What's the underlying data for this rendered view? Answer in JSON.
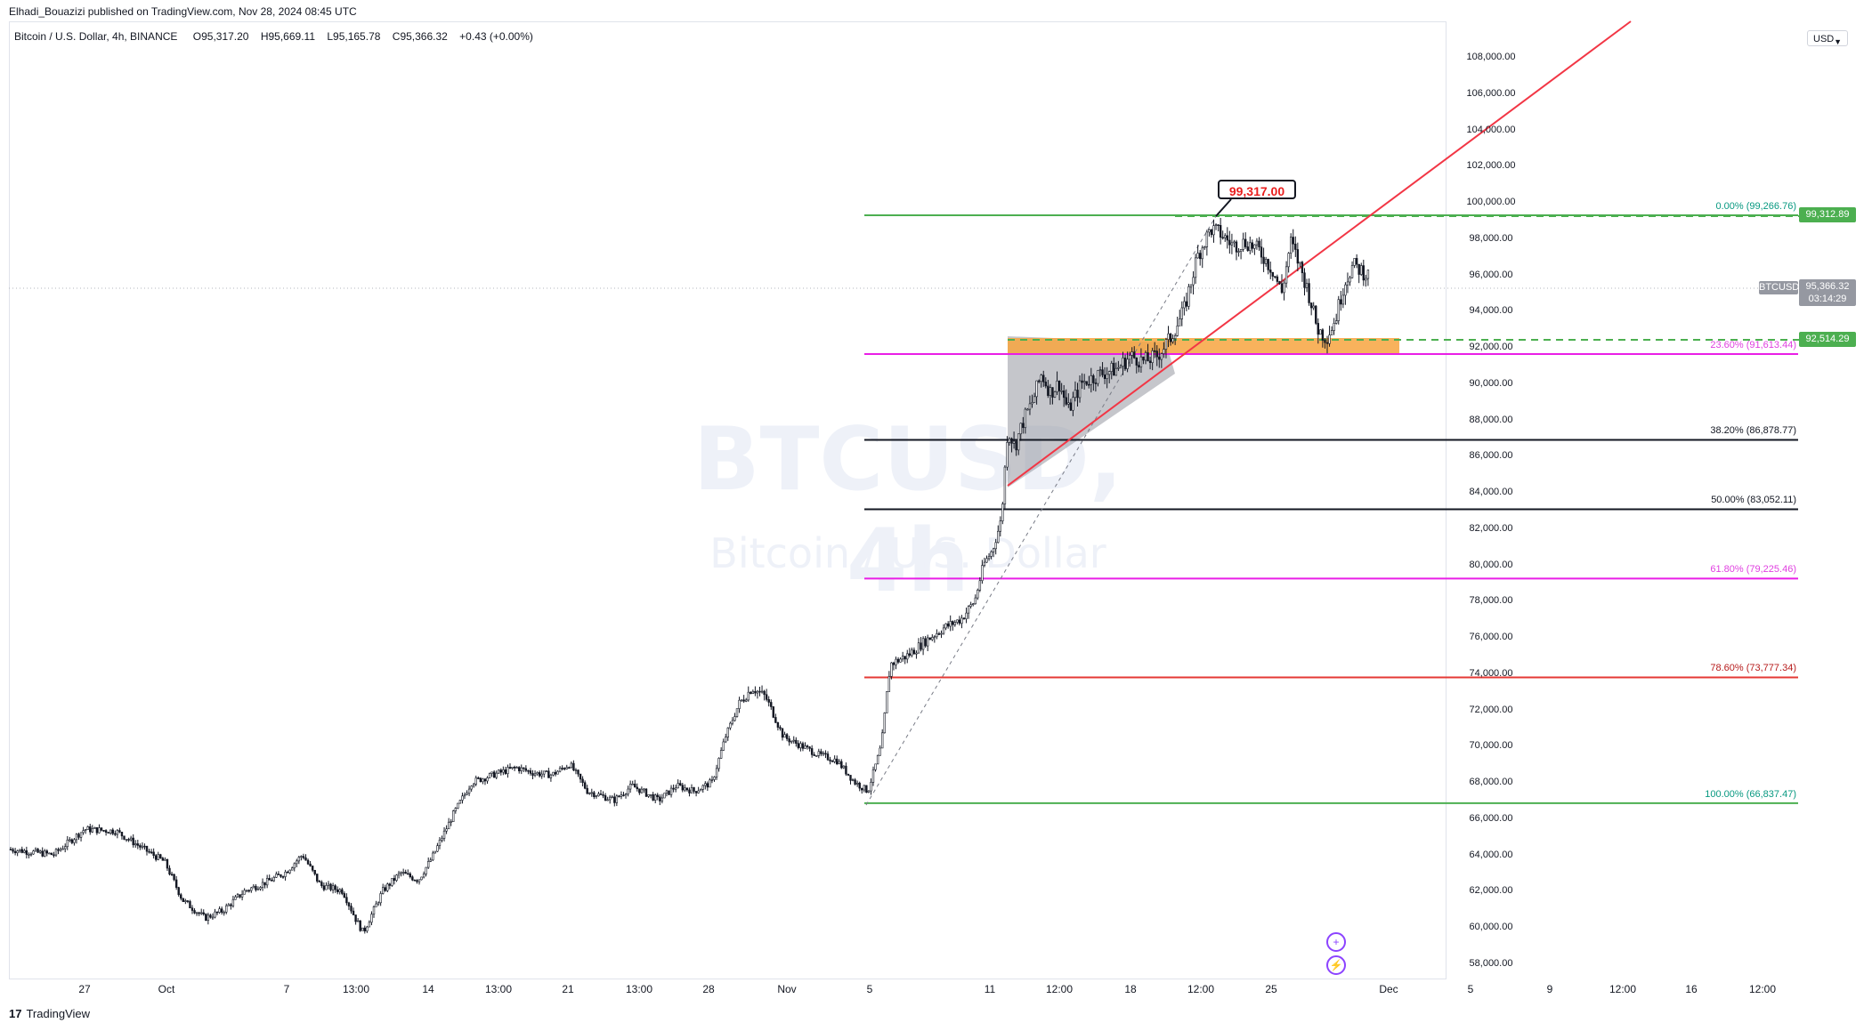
{
  "header": {
    "publisher_line": "Elhadi_Bouazizi published on TradingView.com, Nov 28, 2024 08:45 UTC"
  },
  "legend": {
    "instrument": "Bitcoin / U.S. Dollar, 4h, BINANCE",
    "open_label": "O",
    "open": "95,317.20",
    "high_label": "H",
    "high": "95,669.11",
    "low_label": "L",
    "low": "95,165.78",
    "close_label": "C",
    "close": "95,366.32",
    "change": "+0.43 (+0.00%)"
  },
  "watermark": {
    "symbol": "BTCUSD, 4h",
    "name": "Bitcoin / U.S. Dollar"
  },
  "price_axis": {
    "currency": "USD",
    "ticks": [
      "108,000.00",
      "106,000.00",
      "104,000.00",
      "102,000.00",
      "100,000.00",
      "98,000.00",
      "96,000.00",
      "94,000.00",
      "92,000.00",
      "90,000.00",
      "88,000.00",
      "86,000.00",
      "84,000.00",
      "82,000.00",
      "80,000.00",
      "78,000.00",
      "76,000.00",
      "74,000.00",
      "72,000.00",
      "70,000.00",
      "68,000.00",
      "66,000.00",
      "64,000.00",
      "62,000.00",
      "60,000.00",
      "58,000.00"
    ],
    "tag_high": "99,312.89",
    "tag_symbol": "BTCUSD",
    "tag_price": "95,366.32",
    "tag_countdown": "03:14:29",
    "tag_zone": "92,514.29"
  },
  "fib_levels": [
    {
      "label": "0.00% (99,266.76)",
      "price": 99266.76,
      "color": "#089981"
    },
    {
      "label": "23.60% (91,613.44)",
      "price": 91613.44,
      "color": "#e040e0"
    },
    {
      "label": "38.20% (86,878.77)",
      "price": 86878.77,
      "color": "#131722"
    },
    {
      "label": "50.00% (83,052.11)",
      "price": 83052.11,
      "color": "#131722"
    },
    {
      "label": "61.80% (79,225.46)",
      "price": 79225.46,
      "color": "#e040e0"
    },
    {
      "label": "78.60% (73,777.34)",
      "price": 73777.34,
      "color": "#b71c1c"
    },
    {
      "label": "100.00% (66,837.47)",
      "price": 66837.47,
      "color": "#089981"
    }
  ],
  "callout": {
    "text": "99,317.00"
  },
  "time_axis": {
    "labels": [
      "27",
      "Oct",
      "7",
      "13:00",
      "14",
      "13:00",
      "21",
      "13:00",
      "28",
      "Nov",
      "5",
      "11",
      "12:00",
      "18",
      "12:00",
      "25",
      "Dec",
      "5",
      "9",
      "12:00",
      "16",
      "12:00"
    ]
  },
  "branding": {
    "mark": "17",
    "name": "TradingView"
  },
  "colors": {
    "up": "#131722",
    "down": "#131722",
    "fib_line_green": "#4caf50",
    "fib_line_magenta": "#e91ee6",
    "trend": "#f23645",
    "zone": "#f7a440"
  }
}
